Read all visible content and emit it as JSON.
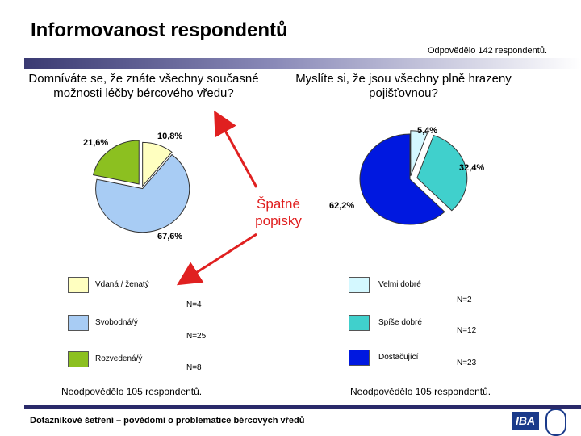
{
  "header": {
    "title": "Informovanost respondentů",
    "respondents_note": "Odpovědělo 142 respondentů."
  },
  "annotation": "Špatné popisky",
  "footer": {
    "text": "Dotazníkové šetření – povědomí o problematice bércových vředů",
    "logo_text": "IBA"
  },
  "chart_data": [
    {
      "type": "pie",
      "title": "Domníváte se, že znáte všechny současné možnosti léčby bércového vředu?",
      "slices": [
        {
          "label": "Vdaná / ženatý",
          "value": 10.8,
          "pct_label": "10,8%",
          "n_label": "N=4",
          "color": "#ffffc0"
        },
        {
          "label": "Svobodná/ý",
          "value": 67.6,
          "pct_label": "67,6%",
          "n_label": "N=25",
          "color": "#a8ccf4"
        },
        {
          "label": "Rozvedená/ý",
          "value": 21.6,
          "pct_label": "21,6%",
          "n_label": "N=8",
          "color": "#8cc020"
        }
      ],
      "legend": "bottom",
      "footnote": "Neodpovědělo 105 respondentů."
    },
    {
      "type": "pie",
      "title": "Myslíte si, že jsou všechny plně hrazeny pojišťovnou?",
      "slices": [
        {
          "label": "Velmi dobré",
          "value": 5.4,
          "pct_label": "5,4%",
          "n_label": "N=2",
          "color": "#d4f8ff"
        },
        {
          "label": "Spíše dobré",
          "value": 32.4,
          "pct_label": "32,4%",
          "n_label": "N=12",
          "color": "#40d0cc"
        },
        {
          "label": "Dostačující",
          "value": 62.2,
          "pct_label": "62,2%",
          "n_label": "N=23",
          "color": "#0018e0"
        }
      ],
      "legend": "bottom",
      "footnote": "Neodpovědělo 105 respondentů."
    }
  ]
}
